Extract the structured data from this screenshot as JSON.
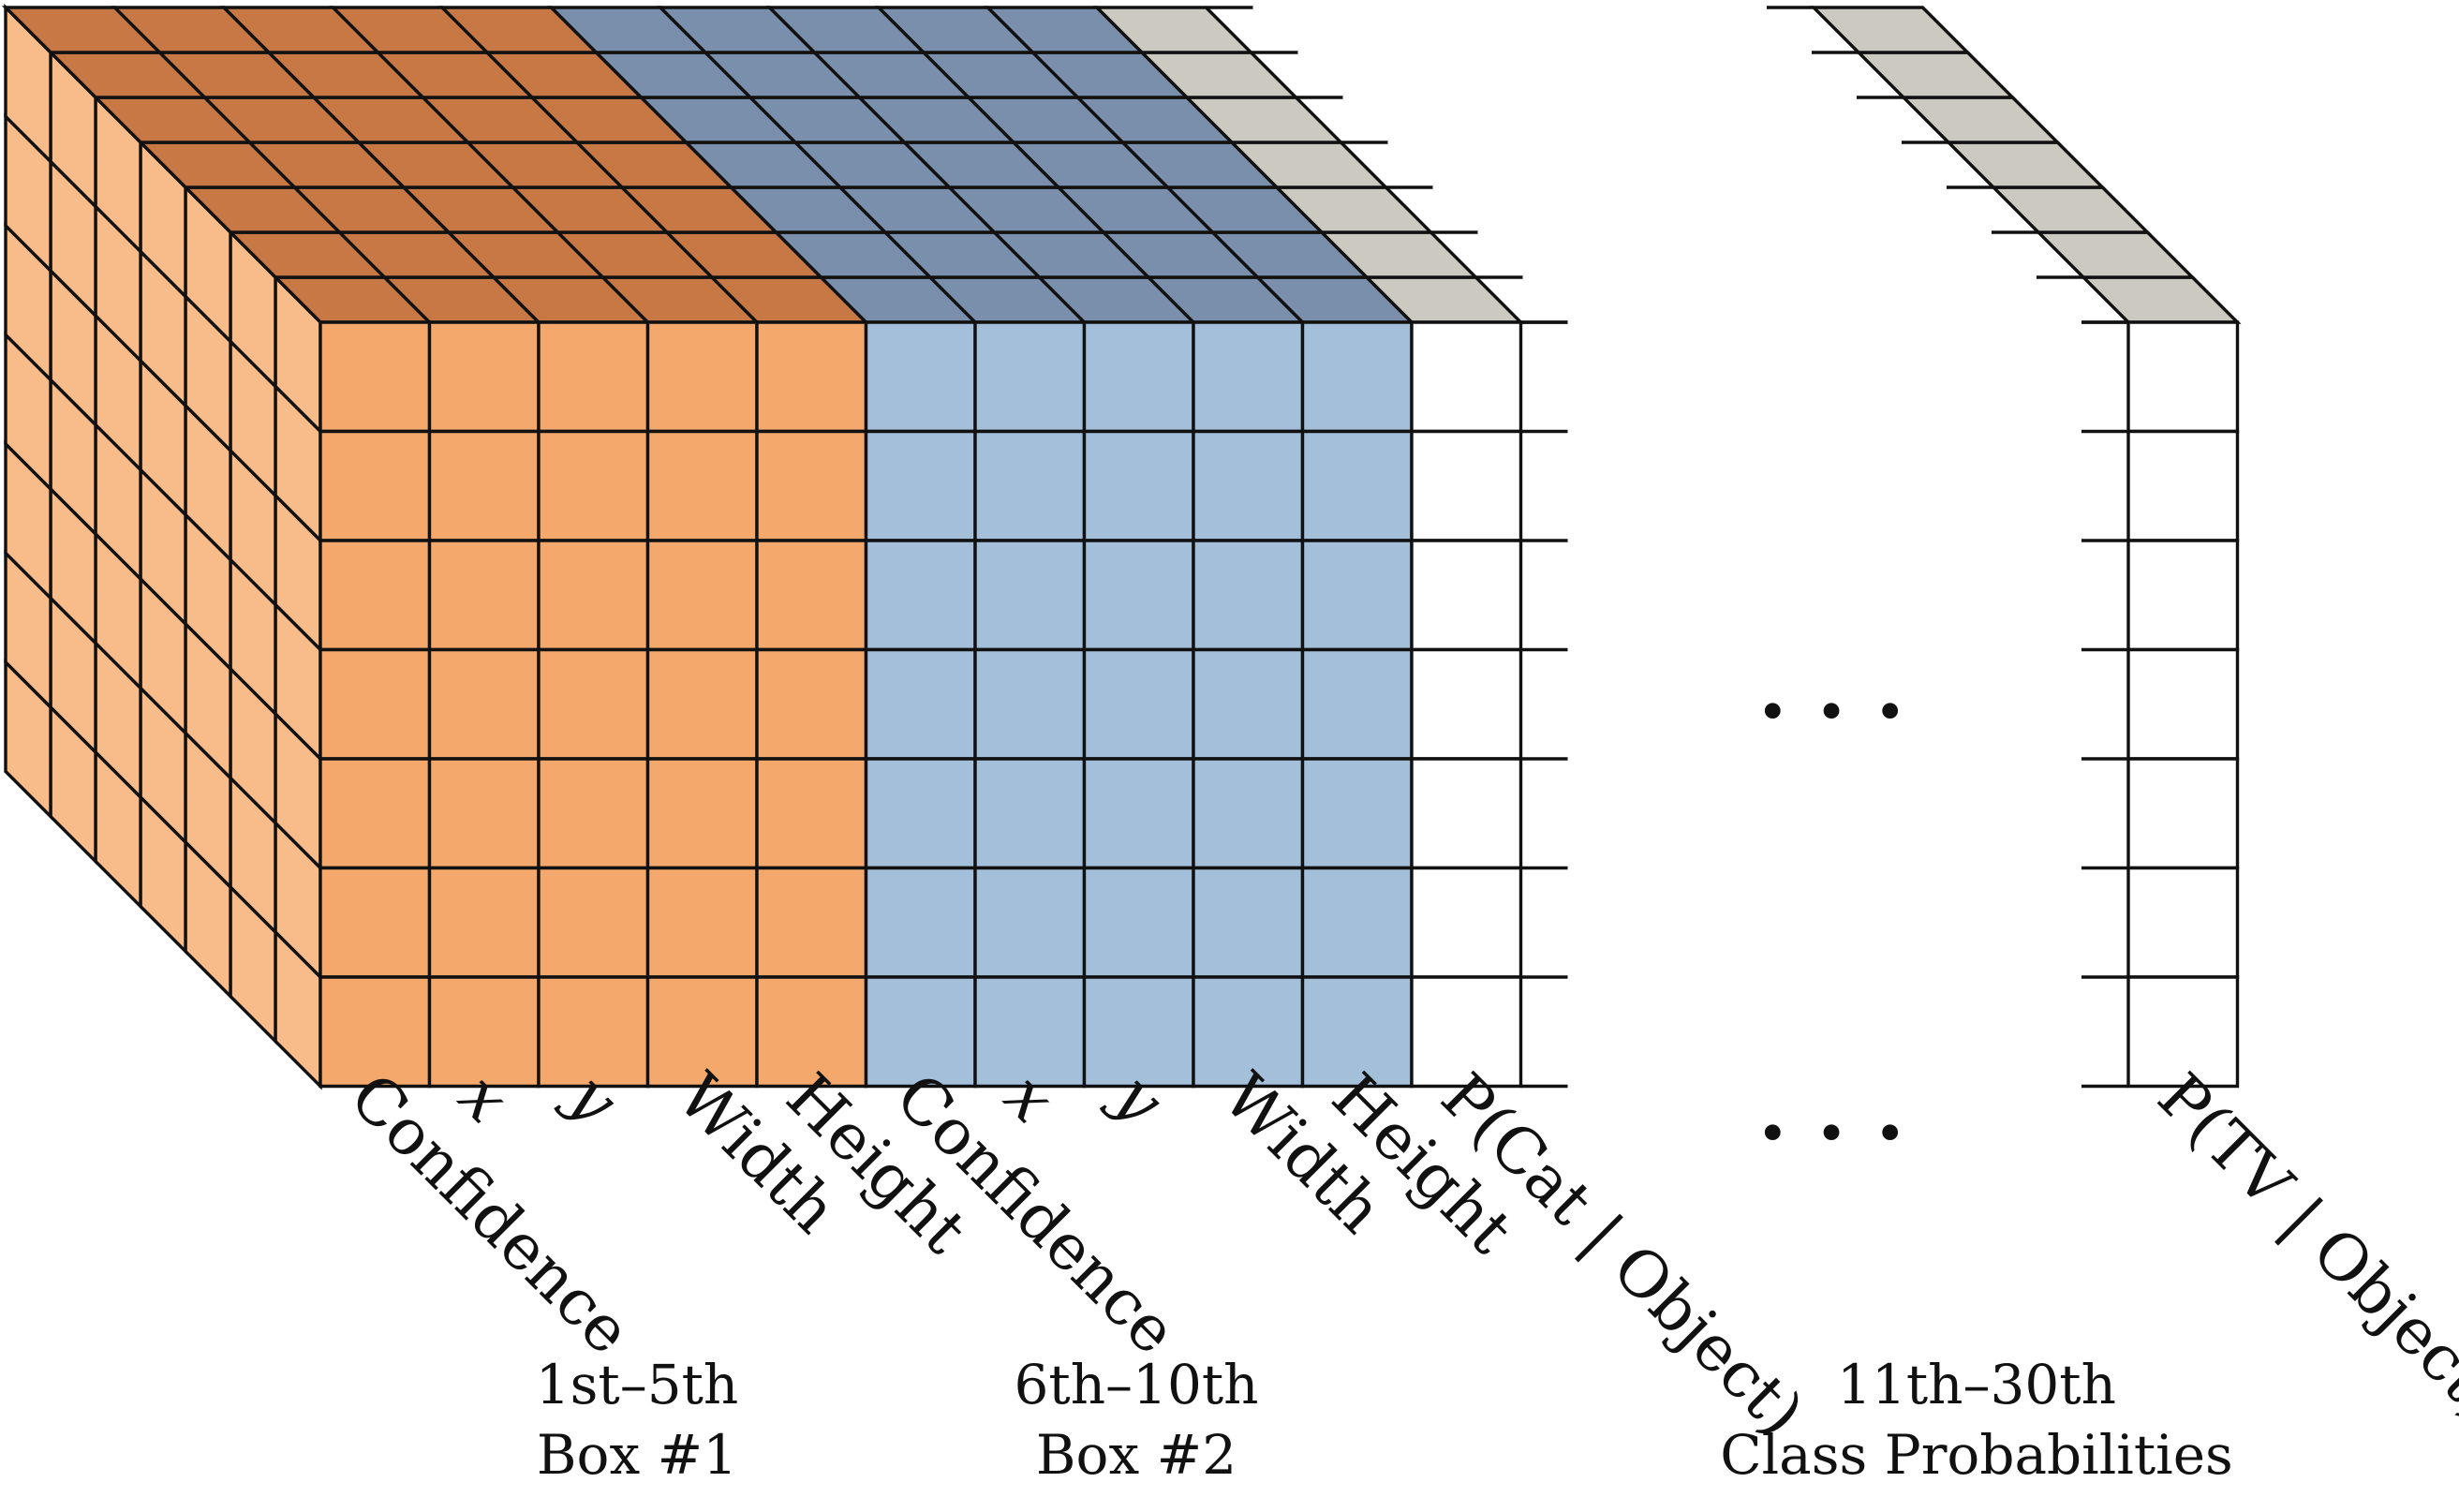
{
  "colors": {
    "box1_front": "#f4a86b",
    "box1_top": "#c87845",
    "box1_side": "#f8bb8a",
    "box2_front": "#a3bfda",
    "box2_top": "#7a8fab",
    "class_top": "#cccac0",
    "class_front": "#ffffff",
    "line": "#111111",
    "box1_text": "#c8102e",
    "box2_text": "#7f9cc4",
    "class_text": "#111111"
  },
  "ellipsis": "· · ·",
  "channel_labels": [
    {
      "text": "Confidence",
      "italic": false
    },
    {
      "text": "x",
      "italic": true
    },
    {
      "text": "y",
      "italic": true
    },
    {
      "text": "Width",
      "italic": false
    },
    {
      "text": "Height",
      "italic": false
    },
    {
      "text": "Confidence",
      "italic": false
    },
    {
      "text": "x",
      "italic": true
    },
    {
      "text": "y",
      "italic": true
    },
    {
      "text": "Width",
      "italic": false
    },
    {
      "text": "Height",
      "italic": false
    },
    {
      "text": "P(Cat | Object)",
      "italic": false
    }
  ],
  "last_channel_label": "P(TV | Object)",
  "groups": {
    "box1": {
      "range": "1st–5th",
      "name": "Box #1"
    },
    "box2": {
      "range": "6th–10th",
      "name": "Box #2"
    },
    "classes": {
      "range": "11th–30th",
      "name": "Class Probabilities"
    }
  }
}
